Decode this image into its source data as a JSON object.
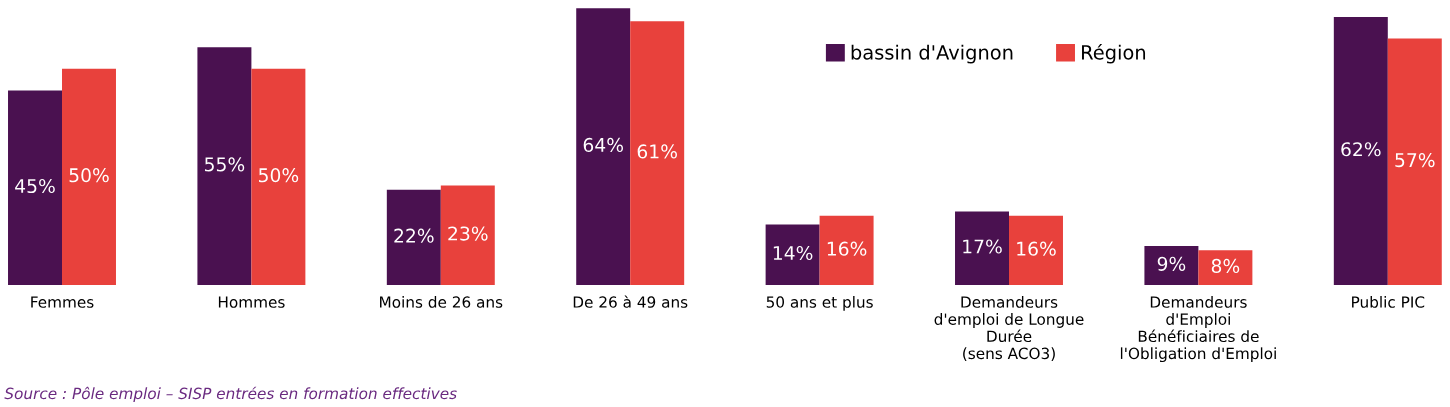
{
  "chart_data": {
    "type": "bar",
    "categories": [
      "Femmes",
      "Hommes",
      "Moins de 26 ans",
      "De 26 à 49 ans",
      "50 ans et plus",
      "Demandeurs\nd'emploi de Longue\nDurée\n(sens ACO3)",
      "Demandeurs\nd'Emploi\nBénéficiaires de\nl'Obligation d'Emploi",
      "Public PIC"
    ],
    "series": [
      {
        "name": "bassin d'Avignon",
        "color": "#4a1150",
        "values": [
          45,
          55,
          22,
          64,
          14,
          17,
          9,
          62
        ],
        "value_labels": [
          "45%",
          "55%",
          "22%",
          "64%",
          "14%",
          "17%",
          "9%",
          "62%"
        ]
      },
      {
        "name": "Région",
        "color": "#e8413c",
        "values": [
          50,
          50,
          23,
          61,
          16,
          16,
          8,
          57
        ],
        "value_labels": [
          "50%",
          "50%",
          "23%",
          "61%",
          "16%",
          "16%",
          "8%",
          "57%"
        ]
      }
    ],
    "legend": "top right",
    "annotations": [
      "Source : Pôle emploi – SISP entrées en formation effectives"
    ]
  }
}
